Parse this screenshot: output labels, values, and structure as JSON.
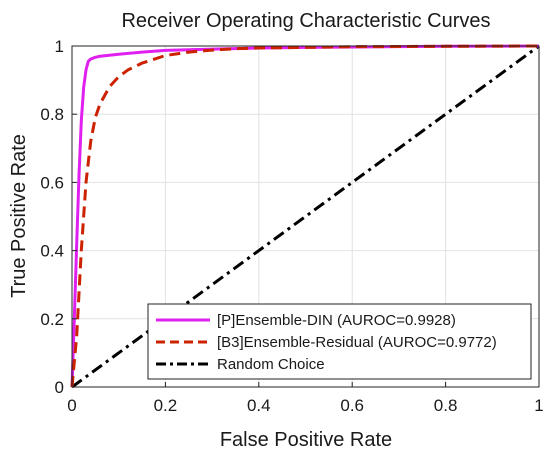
{
  "chart_data": {
    "type": "line",
    "title": "Receiver Operating Characteristic Curves",
    "xlabel": "False Positive Rate",
    "ylabel": "True Positive Rate",
    "xlim": [
      0,
      1
    ],
    "ylim": [
      0,
      1
    ],
    "xticks": [
      0,
      0.2,
      0.4,
      0.6,
      0.8,
      1
    ],
    "xtick_labels": [
      "0",
      "0.2",
      "0.4",
      "0.6",
      "0.8",
      "1"
    ],
    "yticks": [
      0,
      0.2,
      0.4,
      0.6,
      0.8,
      1
    ],
    "ytick_labels": [
      "0",
      "0.2",
      "0.4",
      "0.6",
      "0.8",
      "1"
    ],
    "grid": true,
    "legend_position": "bottom-right",
    "series": [
      {
        "name": "[P]Ensemble-DIN (AUROC=0.9928)",
        "color": "#e020f0",
        "style": "solid",
        "x": [
          0,
          0.005,
          0.01,
          0.015,
          0.02,
          0.025,
          0.03,
          0.035,
          0.04,
          0.05,
          0.06,
          0.08,
          0.1,
          0.15,
          0.2,
          0.3,
          0.4,
          0.5,
          0.6,
          0.8,
          1
        ],
        "y": [
          0,
          0.2,
          0.42,
          0.62,
          0.78,
          0.88,
          0.93,
          0.955,
          0.962,
          0.967,
          0.97,
          0.973,
          0.976,
          0.982,
          0.987,
          0.991,
          0.994,
          0.996,
          0.997,
          0.999,
          1
        ]
      },
      {
        "name": "[B3]Ensemble-Residual (AUROC=0.9772)",
        "color": "#cc2200",
        "style": "dashed",
        "x": [
          0,
          0.01,
          0.02,
          0.03,
          0.04,
          0.05,
          0.06,
          0.08,
          0.1,
          0.12,
          0.15,
          0.2,
          0.25,
          0.3,
          0.35,
          0.4,
          0.5,
          0.6,
          0.8,
          1
        ],
        "y": [
          0,
          0.15,
          0.4,
          0.6,
          0.72,
          0.79,
          0.83,
          0.88,
          0.91,
          0.93,
          0.95,
          0.972,
          0.982,
          0.988,
          0.992,
          0.994,
          0.996,
          0.998,
          0.999,
          1
        ]
      },
      {
        "name": "Random Choice",
        "color": "#000000",
        "style": "dashdot",
        "x": [
          0,
          1
        ],
        "y": [
          0,
          1
        ]
      }
    ]
  }
}
